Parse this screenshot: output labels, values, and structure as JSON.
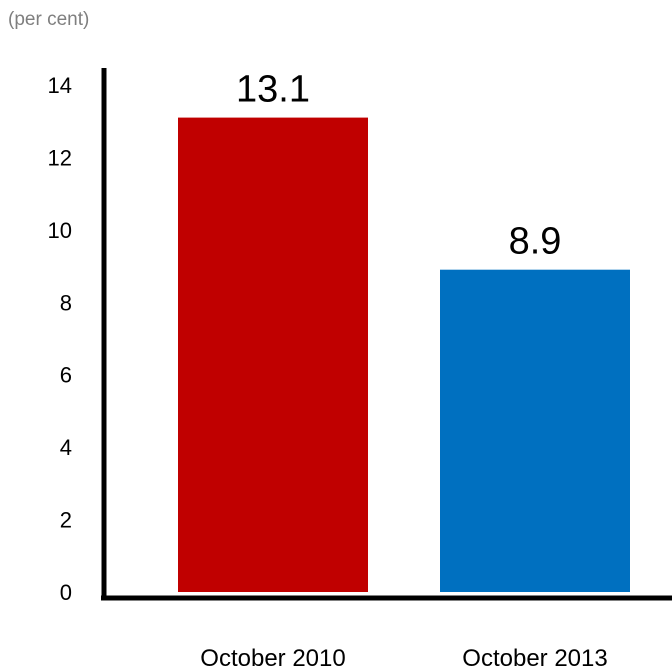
{
  "chart_data": {
    "type": "bar",
    "unit_label": "(per cent)",
    "categories": [
      "October 2010",
      "October 2013"
    ],
    "values": [
      13.1,
      8.9
    ],
    "data_labels": [
      "13.1",
      "8.9"
    ],
    "colors": [
      "#c00000",
      "#0070c0"
    ],
    "ylim": [
      0,
      14
    ],
    "yticks": [
      0,
      2,
      4,
      6,
      8,
      10,
      12,
      14
    ],
    "ytick_labels": [
      "0",
      "2",
      "4",
      "6",
      "8",
      "10",
      "12",
      "14"
    ],
    "grid": false,
    "legend": "none"
  }
}
